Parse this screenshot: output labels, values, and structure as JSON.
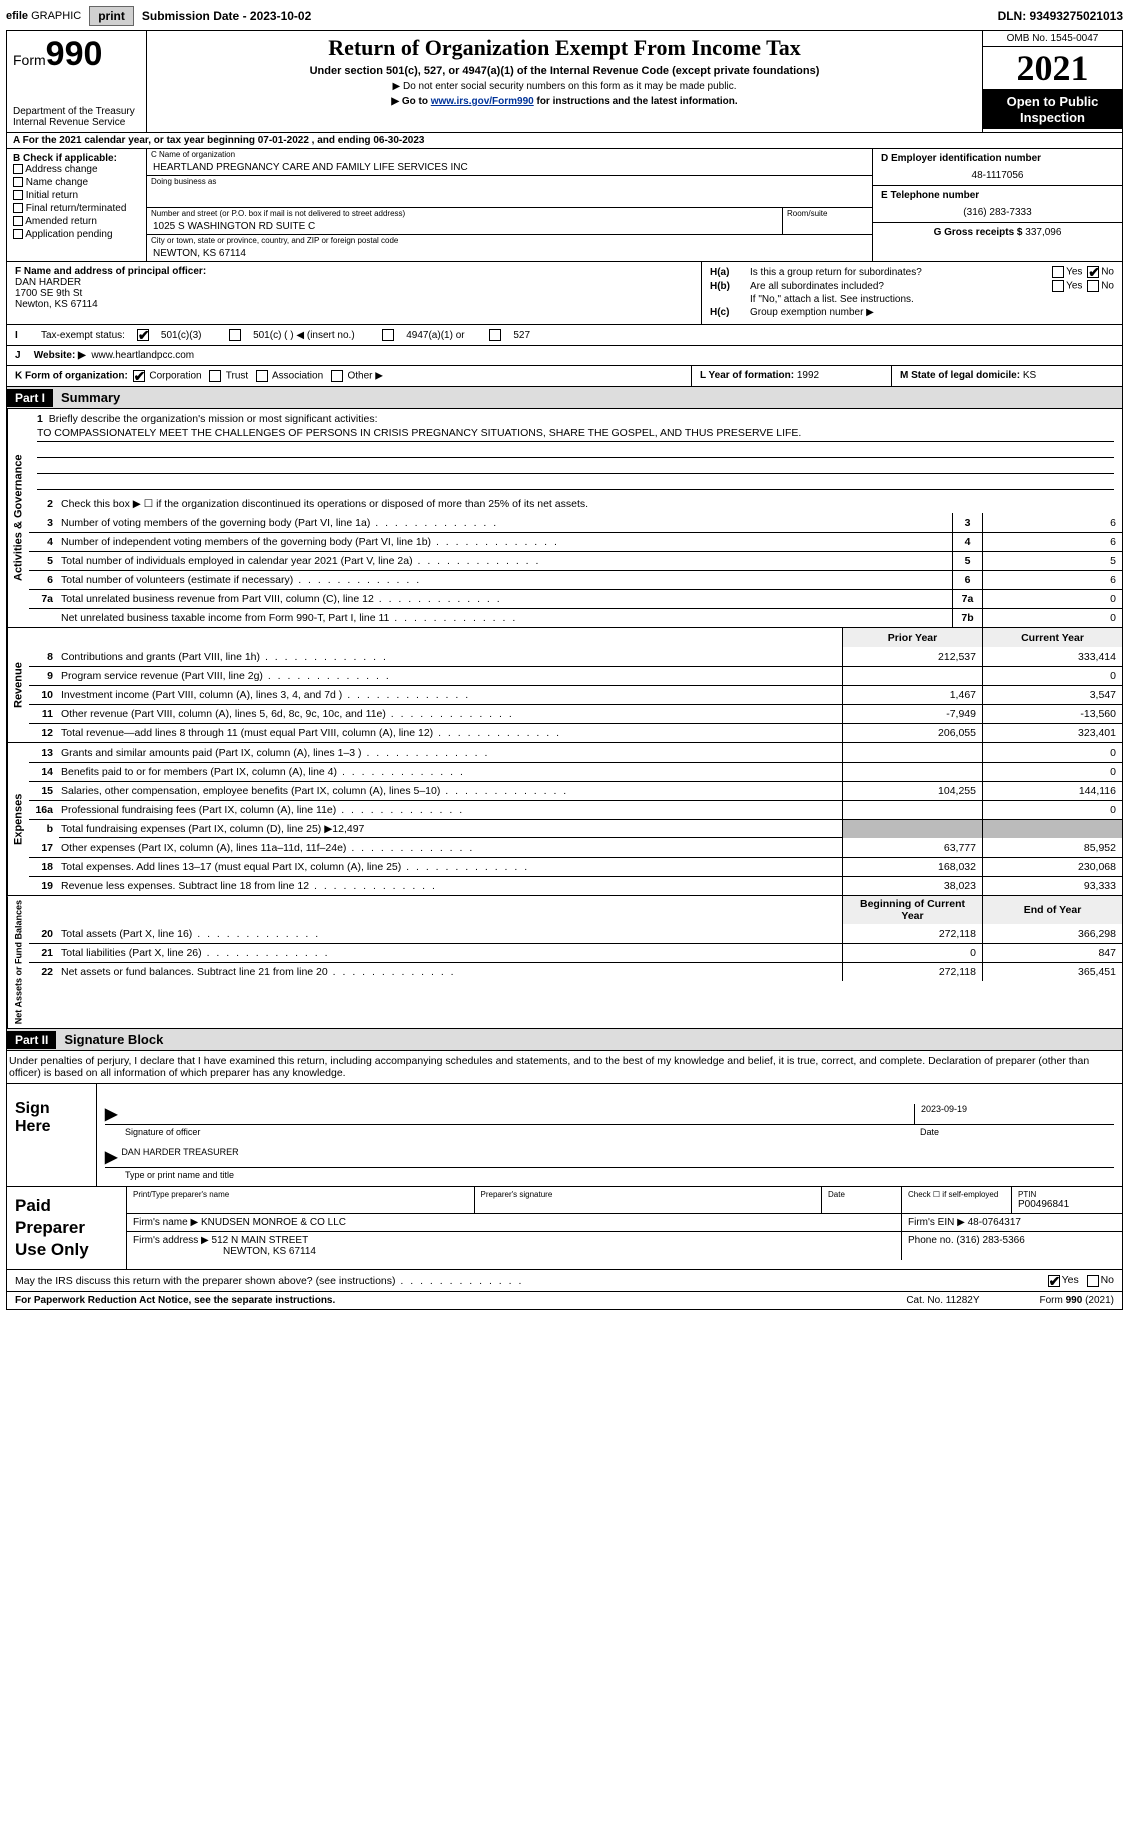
{
  "topbar": {
    "efile_prefix": "efile",
    "efile_label": "GRAPHIC",
    "print_label": "print",
    "submission_label": "Submission Date - 2023-10-02",
    "dln": "DLN: 93493275021013"
  },
  "header": {
    "form_word": "Form",
    "form_num": "990",
    "dept1": "Department of the Treasury",
    "dept2": "Internal Revenue Service",
    "title": "Return of Organization Exempt From Income Tax",
    "sub": "Under section 501(c), 527, or 4947(a)(1) of the Internal Revenue Code (except private foundations)",
    "note1": "▶ Do not enter social security numbers on this form as it may be made public.",
    "note2_pre": "▶ Go to ",
    "note2_link": "www.irs.gov/Form990",
    "note2_post": " for instructions and the latest information.",
    "omb": "OMB No. 1545-0047",
    "year": "2021",
    "otp1": "Open to Public",
    "otp2": "Inspection"
  },
  "row_a": "A For the 2021 calendar year, or tax year beginning 07-01-2022   , and ending 06-30-2023",
  "col_b": {
    "label": "B Check if applicable:",
    "items": [
      "Address change",
      "Name change",
      "Initial return",
      "Final return/terminated",
      "Amended return",
      "Application pending"
    ]
  },
  "section_c": {
    "name_lbl": "C Name of organization",
    "name": "HEARTLAND PREGNANCY CARE AND FAMILY LIFE SERVICES INC",
    "dba_lbl": "Doing business as",
    "dba": "",
    "addr_lbl": "Number and street (or P.O. box if mail is not delivered to street address)",
    "room_lbl": "Room/suite",
    "addr": "1025 S WASHINGTON RD SUITE C",
    "city_lbl": "City or town, state or province, country, and ZIP or foreign postal code",
    "city": "NEWTON, KS  67114"
  },
  "col_de": {
    "d_lbl": "D Employer identification number",
    "d_val": "48-1117056",
    "e_lbl": "E Telephone number",
    "e_val": "(316) 283-7333",
    "g_lbl": "G Gross receipts $",
    "g_val": "337,096"
  },
  "section_f": {
    "lbl": "F  Name and address of principal officer:",
    "name": "DAN HARDER",
    "street": "1700 SE 9th St",
    "city": "Newton, KS  67114"
  },
  "section_h": {
    "ha_lbl": "H(a)",
    "ha_txt": "Is this a group return for subordinates?",
    "hb_lbl": "H(b)",
    "hb_txt": "Are all subordinates included?",
    "hb_note": "If \"No,\" attach a list. See instructions.",
    "hc_lbl": "H(c)",
    "hc_txt": "Group exemption number ▶",
    "yes": "Yes",
    "no": "No"
  },
  "row_i": {
    "lbl": "Tax-exempt status:",
    "o1": "501(c)(3)",
    "o2": "501(c) (  ) ◀ (insert no.)",
    "o3": "4947(a)(1) or",
    "o4": "527"
  },
  "row_j": {
    "lbl": "Website: ▶",
    "val": "www.heartlandpcc.com"
  },
  "row_k": {
    "lbl": "K Form of organization:",
    "opts": [
      "Corporation",
      "Trust",
      "Association",
      "Other ▶"
    ],
    "l_lbl": "L Year of formation:",
    "l_val": "1992",
    "m_lbl": "M State of legal domicile:",
    "m_val": "KS"
  },
  "part1": {
    "part": "Part I",
    "title": "Summary",
    "line1_lbl": "Briefly describe the organization's mission or most significant activities:",
    "line1_txt": "TO COMPASSIONATELY MEET THE CHALLENGES OF PERSONS IN CRISIS PREGNANCY SITUATIONS, SHARE THE GOSPEL, AND THUS PRESERVE LIFE.",
    "line2": "Check this box ▶ ☐  if the organization discontinued its operations or disposed of more than 25% of its net assets.",
    "tabs": {
      "gov": "Activities & Governance",
      "rev": "Revenue",
      "exp": "Expenses",
      "net": "Net Assets or Fund Balances"
    },
    "gov_lines": [
      {
        "n": "3",
        "d": "Number of voting members of the governing body (Part VI, line 1a)",
        "box": "3",
        "v": "6"
      },
      {
        "n": "4",
        "d": "Number of independent voting members of the governing body (Part VI, line 1b)",
        "box": "4",
        "v": "6"
      },
      {
        "n": "5",
        "d": "Total number of individuals employed in calendar year 2021 (Part V, line 2a)",
        "box": "5",
        "v": "5"
      },
      {
        "n": "6",
        "d": "Total number of volunteers (estimate if necessary)",
        "box": "6",
        "v": "6"
      },
      {
        "n": "7a",
        "d": "Total unrelated business revenue from Part VIII, column (C), line 12",
        "box": "7a",
        "v": "0"
      },
      {
        "n": "",
        "d": "Net unrelated business taxable income from Form 990-T, Part I, line 11",
        "box": "7b",
        "v": "0"
      }
    ],
    "col_prior": "Prior Year",
    "col_current": "Current Year",
    "rev_lines": [
      {
        "n": "8",
        "d": "Contributions and grants (Part VIII, line 1h)",
        "p": "212,537",
        "c": "333,414"
      },
      {
        "n": "9",
        "d": "Program service revenue (Part VIII, line 2g)",
        "p": "",
        "c": "0"
      },
      {
        "n": "10",
        "d": "Investment income (Part VIII, column (A), lines 3, 4, and 7d )",
        "p": "1,467",
        "c": "3,547"
      },
      {
        "n": "11",
        "d": "Other revenue (Part VIII, column (A), lines 5, 6d, 8c, 9c, 10c, and 11e)",
        "p": "-7,949",
        "c": "-13,560"
      },
      {
        "n": "12",
        "d": "Total revenue—add lines 8 through 11 (must equal Part VIII, column (A), line 12)",
        "p": "206,055",
        "c": "323,401"
      }
    ],
    "exp_lines": [
      {
        "n": "13",
        "d": "Grants and similar amounts paid (Part IX, column (A), lines 1–3 )",
        "p": "",
        "c": "0"
      },
      {
        "n": "14",
        "d": "Benefits paid to or for members (Part IX, column (A), line 4)",
        "p": "",
        "c": "0"
      },
      {
        "n": "15",
        "d": "Salaries, other compensation, employee benefits (Part IX, column (A), lines 5–10)",
        "p": "104,255",
        "c": "144,116"
      },
      {
        "n": "16a",
        "d": "Professional fundraising fees (Part IX, column (A), line 11e)",
        "p": "",
        "c": "0"
      }
    ],
    "line16b": "Total fundraising expenses (Part IX, column (D), line 25) ▶12,497",
    "exp_lines2": [
      {
        "n": "17",
        "d": "Other expenses (Part IX, column (A), lines 11a–11d, 11f–24e)",
        "p": "63,777",
        "c": "85,952"
      },
      {
        "n": "18",
        "d": "Total expenses. Add lines 13–17 (must equal Part IX, column (A), line 25)",
        "p": "168,032",
        "c": "230,068"
      },
      {
        "n": "19",
        "d": "Revenue less expenses. Subtract line 18 from line 12",
        "p": "38,023",
        "c": "93,333"
      }
    ],
    "col_begin": "Beginning of Current Year",
    "col_end": "End of Year",
    "net_lines": [
      {
        "n": "20",
        "d": "Total assets (Part X, line 16)",
        "p": "272,118",
        "c": "366,298"
      },
      {
        "n": "21",
        "d": "Total liabilities (Part X, line 26)",
        "p": "0",
        "c": "847"
      },
      {
        "n": "22",
        "d": "Net assets or fund balances. Subtract line 21 from line 20",
        "p": "272,118",
        "c": "365,451"
      }
    ]
  },
  "part2": {
    "part": "Part II",
    "title": "Signature Block",
    "intro": "Under penalties of perjury, I declare that I have examined this return, including accompanying schedules and statements, and to the best of my knowledge and belief, it is true, correct, and complete. Declaration of preparer (other than officer) is based on all information of which preparer has any knowledge.",
    "sign_here": "Sign Here",
    "sig_officer": "Signature of officer",
    "sig_date_val": "2023-09-19",
    "sig_date": "Date",
    "officer_name": "DAN HARDER TREASURER",
    "officer_lbl": "Type or print name and title",
    "paid": "Paid Preparer Use Only",
    "pp_name_lbl": "Print/Type preparer's name",
    "pp_sig_lbl": "Preparer's signature",
    "pp_date_lbl": "Date",
    "pp_self": "Check ☐ if self-employed",
    "ptin_lbl": "PTIN",
    "ptin": "P00496841",
    "firm_name_lbl": "Firm's name    ▶",
    "firm_name": "KNUDSEN MONROE & CO LLC",
    "firm_ein_lbl": "Firm's EIN ▶",
    "firm_ein": "48-0764317",
    "firm_addr_lbl": "Firm's address ▶",
    "firm_addr1": "512 N MAIN STREET",
    "firm_addr2": "NEWTON, KS  67114",
    "phone_lbl": "Phone no.",
    "phone": "(316) 283-5366"
  },
  "may_irs": "May the IRS discuss this return with the preparer shown above? (see instructions)",
  "footer": {
    "paperwork": "For Paperwork Reduction Act Notice, see the separate instructions.",
    "cat": "Cat. No. 11282Y",
    "form": "Form 990 (2021)"
  }
}
